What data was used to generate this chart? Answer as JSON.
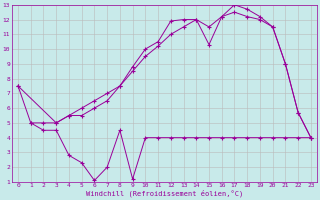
{
  "xlabel": "Windchill (Refroidissement éolien,°C)",
  "bg_color": "#c8eaea",
  "line_color": "#990099",
  "grid_color": "#bbbbbb",
  "xlim": [
    -0.5,
    23.5
  ],
  "ylim": [
    1,
    13
  ],
  "xticks": [
    0,
    1,
    2,
    3,
    4,
    5,
    6,
    7,
    8,
    9,
    10,
    11,
    12,
    13,
    14,
    15,
    16,
    17,
    18,
    19,
    20,
    21,
    22,
    23
  ],
  "yticks": [
    1,
    2,
    3,
    4,
    5,
    6,
    7,
    8,
    9,
    10,
    11,
    12,
    13
  ],
  "curve1_x": [
    0,
    1,
    2,
    3,
    4,
    5,
    6,
    7,
    8,
    9,
    10,
    11,
    12,
    13,
    14,
    15,
    16,
    17,
    18,
    19,
    20,
    21,
    22,
    23
  ],
  "curve1_y": [
    7.5,
    5.0,
    5.0,
    5.0,
    5.5,
    5.5,
    6.0,
    6.5,
    7.5,
    8.8,
    10.0,
    10.5,
    11.9,
    12.0,
    12.0,
    10.3,
    12.2,
    13.0,
    12.7,
    12.2,
    11.5,
    9.0,
    5.7,
    4.0
  ],
  "curve2_x": [
    0,
    3,
    4,
    5,
    6,
    7,
    8,
    9,
    10,
    11,
    12,
    13,
    14,
    15,
    16,
    17,
    18,
    19,
    20,
    21,
    22,
    23
  ],
  "curve2_y": [
    7.5,
    5.0,
    5.5,
    6.0,
    6.5,
    7.0,
    7.5,
    8.5,
    9.5,
    10.2,
    11.0,
    11.5,
    12.0,
    11.5,
    12.2,
    12.5,
    12.2,
    12.0,
    11.5,
    9.0,
    5.7,
    4.0
  ],
  "curve3_x": [
    1,
    2,
    3,
    4,
    5,
    6,
    7,
    8,
    9,
    10,
    11,
    12,
    13,
    14,
    15,
    16,
    17,
    18,
    19,
    20,
    21,
    22,
    23
  ],
  "curve3_y": [
    5.0,
    4.5,
    4.5,
    2.8,
    2.3,
    1.1,
    2.0,
    4.5,
    1.2,
    4.0,
    4.0,
    4.0,
    4.0,
    4.0,
    4.0,
    4.0,
    4.0,
    4.0,
    4.0,
    4.0,
    4.0,
    4.0,
    4.0
  ]
}
